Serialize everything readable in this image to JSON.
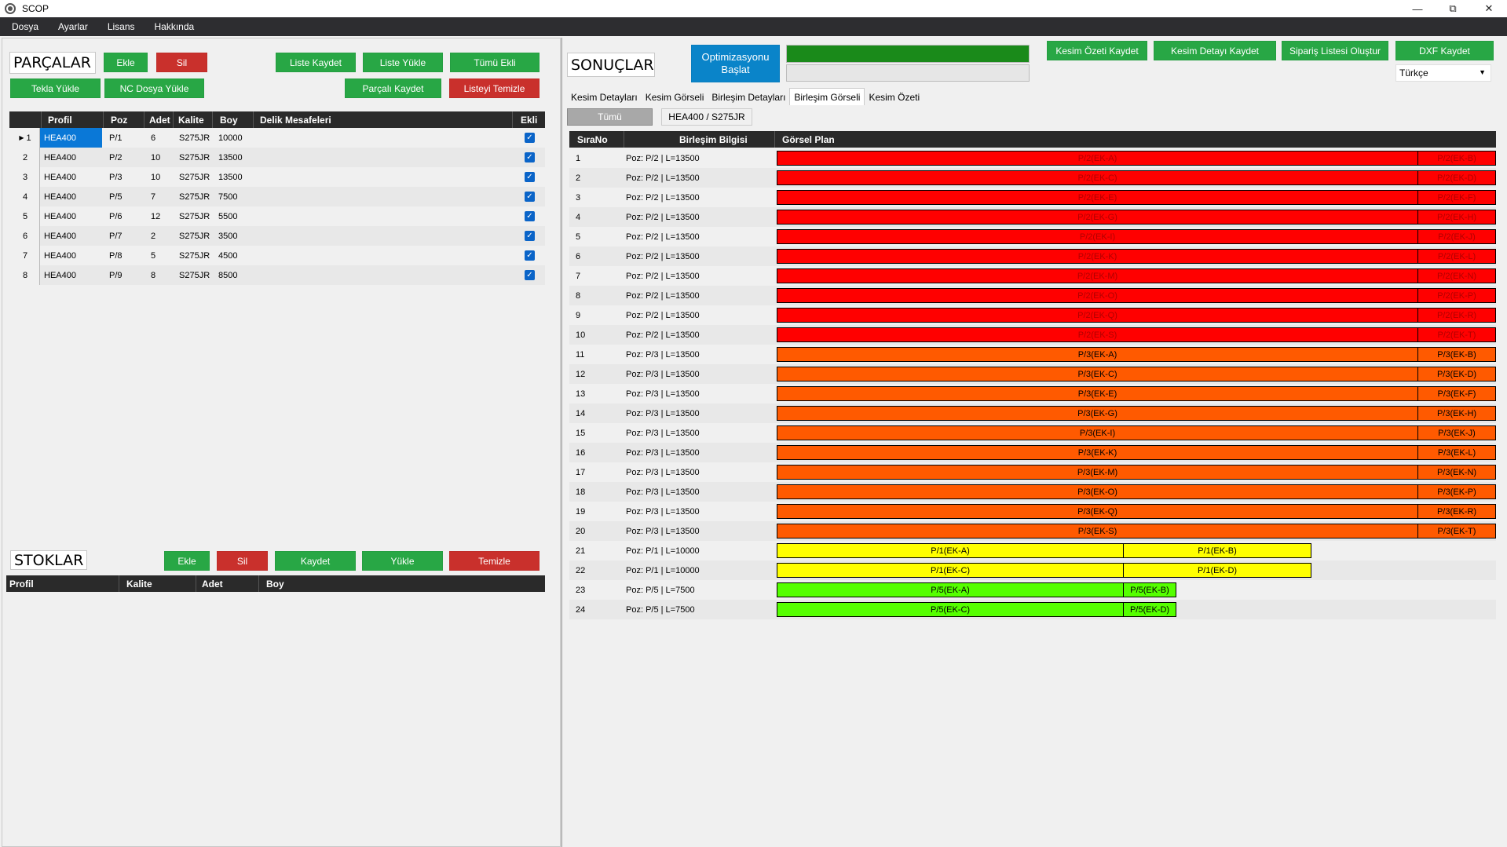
{
  "window": {
    "title": "SCOP"
  },
  "menu": [
    "Dosya",
    "Ayarlar",
    "Lisans",
    "Hakkında"
  ],
  "parts": {
    "title": "PARÇALAR",
    "buttons": {
      "add": "Ekle",
      "delete": "Sil",
      "save_list": "Liste Kaydet",
      "load_list": "Liste Yükle",
      "all_added": "Tümü Ekli",
      "tekla_load": "Tekla Yükle",
      "nc_load": "NC Dosya Yükle",
      "save_parted": "Parçalı Kaydet",
      "clear_list": "Listeyi Temizle"
    },
    "columns": [
      "Profil",
      "Poz",
      "Adet",
      "Kalite",
      "Boy",
      "Delik Mesafeleri",
      "Ekli"
    ],
    "rows": [
      {
        "n": "1",
        "profil": "HEA400",
        "poz": "P/1",
        "adet": "6",
        "kalite": "S275JR",
        "boy": "10000",
        "ekli": true
      },
      {
        "n": "2",
        "profil": "HEA400",
        "poz": "P/2",
        "adet": "10",
        "kalite": "S275JR",
        "boy": "13500",
        "ekli": true
      },
      {
        "n": "3",
        "profil": "HEA400",
        "poz": "P/3",
        "adet": "10",
        "kalite": "S275JR",
        "boy": "13500",
        "ekli": true
      },
      {
        "n": "4",
        "profil": "HEA400",
        "poz": "P/5",
        "adet": "7",
        "kalite": "S275JR",
        "boy": "7500",
        "ekli": true
      },
      {
        "n": "5",
        "profil": "HEA400",
        "poz": "P/6",
        "adet": "12",
        "kalite": "S275JR",
        "boy": "5500",
        "ekli": true
      },
      {
        "n": "6",
        "profil": "HEA400",
        "poz": "P/7",
        "adet": "2",
        "kalite": "S275JR",
        "boy": "3500",
        "ekli": true
      },
      {
        "n": "7",
        "profil": "HEA400",
        "poz": "P/8",
        "adet": "5",
        "kalite": "S275JR",
        "boy": "4500",
        "ekli": true
      },
      {
        "n": "8",
        "profil": "HEA400",
        "poz": "P/9",
        "adet": "8",
        "kalite": "S275JR",
        "boy": "8500",
        "ekli": true
      }
    ]
  },
  "stocks": {
    "title": "STOKLAR",
    "buttons": {
      "add": "Ekle",
      "delete": "Sil",
      "save": "Kaydet",
      "load": "Yükle",
      "clear": "Temizle"
    },
    "columns": [
      "Profil",
      "Kalite",
      "Adet",
      "Boy"
    ]
  },
  "results": {
    "title": "SONUÇLAR",
    "start_button": "Optimizasyonu Başlat",
    "progress": 1.0,
    "buttons": {
      "save_cut_summary": "Kesim Özeti Kaydet",
      "save_cut_detail": "Kesim Detayı Kaydet",
      "create_order_list": "Sipariş Listesi Oluştur",
      "save_dxf": "DXF Kaydet"
    },
    "language": "Türkçe",
    "tabs": [
      "Kesim Detayları",
      "Kesim Görseli",
      "Birleşim Detayları",
      "Birleşim Görseli",
      "Kesim Özeti"
    ],
    "active_tab": 3,
    "filters": [
      "Tümü",
      "HEA400 / S275JR"
    ],
    "columns": [
      "SıraNo",
      "Birleşim Bilgisi",
      "Görsel Plan"
    ],
    "colors": {
      "red": "#ff0000",
      "orange": "#ff5a00",
      "yellow": "#ffff00",
      "lime": "#55ff00"
    },
    "rows": [
      {
        "no": "1",
        "info": "Poz: P/2 | L=13500",
        "color": "red",
        "a": "P/2(EK-A)",
        "b": "P/2(EK-B)"
      },
      {
        "no": "2",
        "info": "Poz: P/2 | L=13500",
        "color": "red",
        "a": "P/2(EK-C)",
        "b": "P/2(EK-D)"
      },
      {
        "no": "3",
        "info": "Poz: P/2 | L=13500",
        "color": "red",
        "a": "P/2(EK-E)",
        "b": "P/2(EK-F)"
      },
      {
        "no": "4",
        "info": "Poz: P/2 | L=13500",
        "color": "red",
        "a": "P/2(EK-G)",
        "b": "P/2(EK-H)"
      },
      {
        "no": "5",
        "info": "Poz: P/2 | L=13500",
        "color": "red",
        "a": "P/2(EK-I)",
        "b": "P/2(EK-J)"
      },
      {
        "no": "6",
        "info": "Poz: P/2 | L=13500",
        "color": "red",
        "a": "P/2(EK-K)",
        "b": "P/2(EK-L)"
      },
      {
        "no": "7",
        "info": "Poz: P/2 | L=13500",
        "color": "red",
        "a": "P/2(EK-M)",
        "b": "P/2(EK-N)"
      },
      {
        "no": "8",
        "info": "Poz: P/2 | L=13500",
        "color": "red",
        "a": "P/2(EK-O)",
        "b": "P/2(EK-P)"
      },
      {
        "no": "9",
        "info": "Poz: P/2 | L=13500",
        "color": "red",
        "a": "P/2(EK-Q)",
        "b": "P/2(EK-R)"
      },
      {
        "no": "10",
        "info": "Poz: P/2 | L=13500",
        "color": "red",
        "a": "P/2(EK-S)",
        "b": "P/2(EK-T)"
      },
      {
        "no": "11",
        "info": "Poz: P/3 | L=13500",
        "color": "orange",
        "a": "P/3(EK-A)",
        "b": "P/3(EK-B)"
      },
      {
        "no": "12",
        "info": "Poz: P/3 | L=13500",
        "color": "orange",
        "a": "P/3(EK-C)",
        "b": "P/3(EK-D)"
      },
      {
        "no": "13",
        "info": "Poz: P/3 | L=13500",
        "color": "orange",
        "a": "P/3(EK-E)",
        "b": "P/3(EK-F)"
      },
      {
        "no": "14",
        "info": "Poz: P/3 | L=13500",
        "color": "orange",
        "a": "P/3(EK-G)",
        "b": "P/3(EK-H)"
      },
      {
        "no": "15",
        "info": "Poz: P/3 | L=13500",
        "color": "orange",
        "a": "P/3(EK-I)",
        "b": "P/3(EK-J)"
      },
      {
        "no": "16",
        "info": "Poz: P/3 | L=13500",
        "color": "orange",
        "a": "P/3(EK-K)",
        "b": "P/3(EK-L)"
      },
      {
        "no": "17",
        "info": "Poz: P/3 | L=13500",
        "color": "orange",
        "a": "P/3(EK-M)",
        "b": "P/3(EK-N)"
      },
      {
        "no": "18",
        "info": "Poz: P/3 | L=13500",
        "color": "orange",
        "a": "P/3(EK-O)",
        "b": "P/3(EK-P)"
      },
      {
        "no": "19",
        "info": "Poz: P/3 | L=13500",
        "color": "orange",
        "a": "P/3(EK-Q)",
        "b": "P/3(EK-R)"
      },
      {
        "no": "20",
        "info": "Poz: P/3 | L=13500",
        "color": "orange",
        "a": "P/3(EK-S)",
        "b": "P/3(EK-T)"
      },
      {
        "no": "21",
        "info": "Poz: P/1 | L=10000",
        "color": "yellow",
        "a": "P/1(EK-A)",
        "b": "P/1(EK-B)"
      },
      {
        "no": "22",
        "info": "Poz: P/1 | L=10000",
        "color": "yellow",
        "a": "P/1(EK-C)",
        "b": "P/1(EK-D)"
      },
      {
        "no": "23",
        "info": "Poz: P/5 | L=7500",
        "color": "lime",
        "a": "P/5(EK-A)",
        "b": "P/5(EK-B)"
      },
      {
        "no": "24",
        "info": "Poz: P/5 | L=7500",
        "color": "lime",
        "a": "P/5(EK-C)",
        "b": "P/5(EK-D)"
      }
    ]
  }
}
